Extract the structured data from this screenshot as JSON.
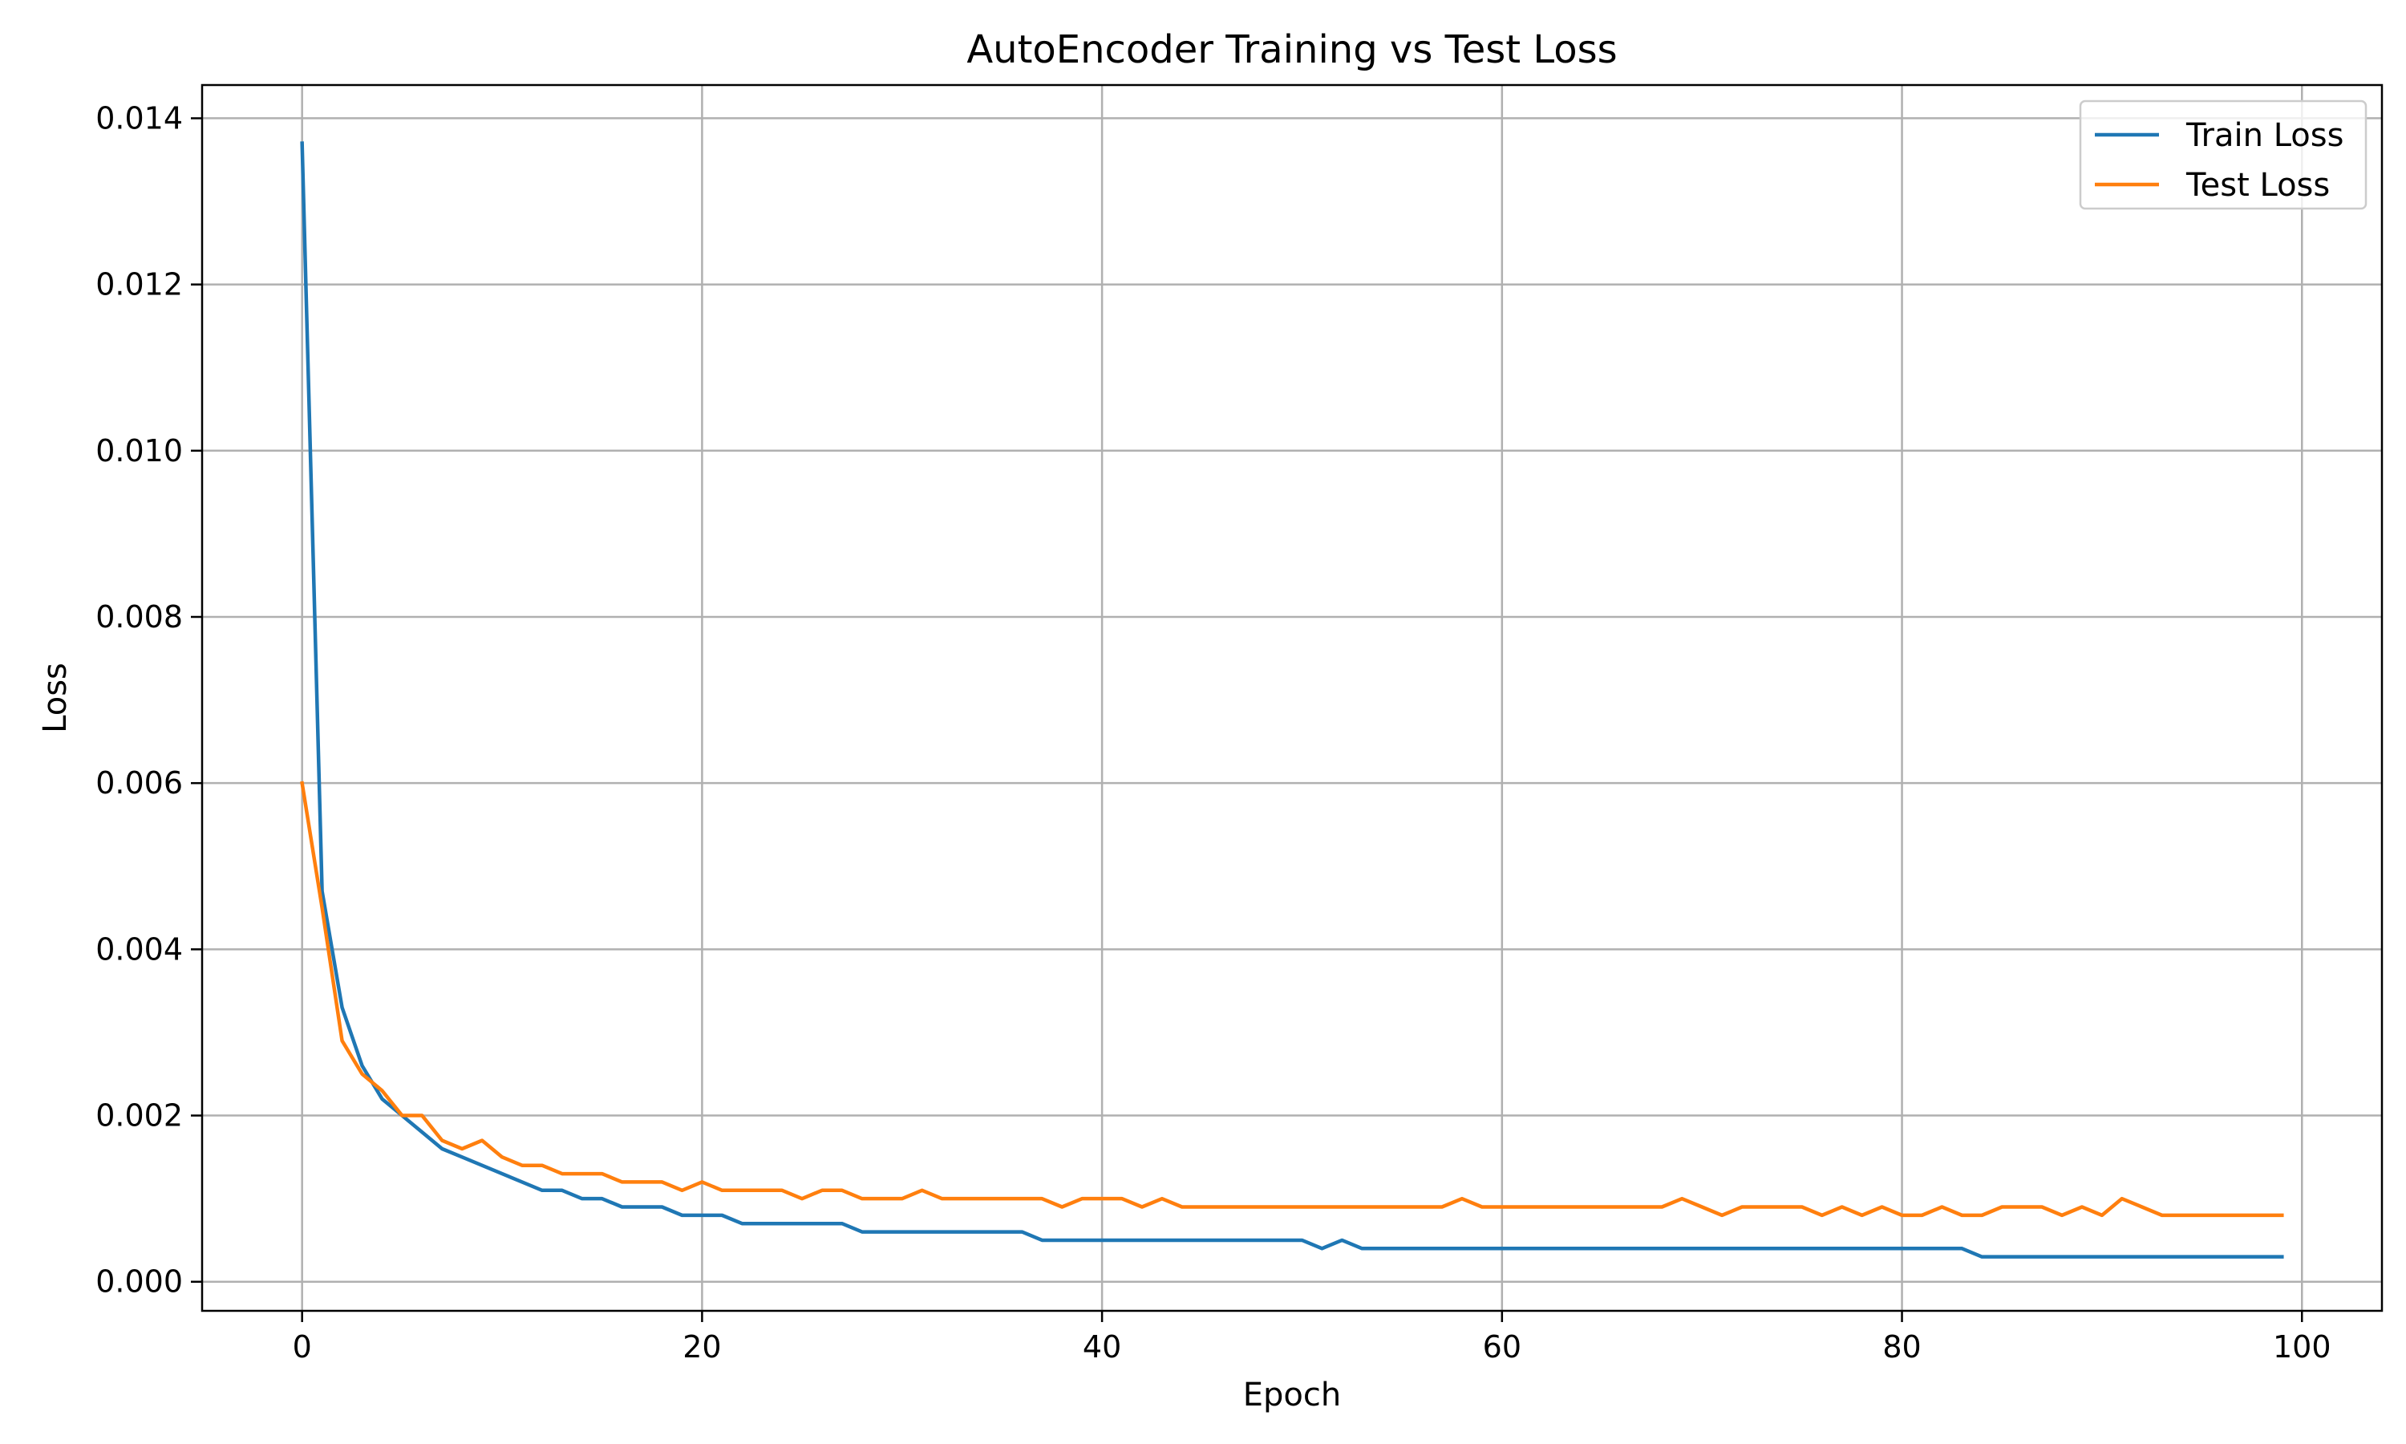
{
  "chart_data": {
    "type": "line",
    "title": "AutoEncoder Training vs Test Loss",
    "xlabel": "Epoch",
    "ylabel": "Loss",
    "xlim": [
      -5,
      104
    ],
    "ylim": [
      -0.00035,
      0.0144
    ],
    "xticks": [
      0,
      20,
      40,
      60,
      80,
      100
    ],
    "xtick_labels": [
      "0",
      "20",
      "40",
      "60",
      "80",
      "100"
    ],
    "yticks": [
      0.0,
      0.002,
      0.004,
      0.006,
      0.008,
      0.01,
      0.012,
      0.014
    ],
    "ytick_labels": [
      "0.000",
      "0.002",
      "0.004",
      "0.006",
      "0.008",
      "0.010",
      "0.012",
      "0.014"
    ],
    "grid": true,
    "legend_position": "top-right",
    "series": [
      {
        "name": "Train Loss",
        "color": "#1f77b4",
        "values": [
          0.0137,
          0.0047,
          0.0033,
          0.0026,
          0.0022,
          0.002,
          0.0018,
          0.0016,
          0.0015,
          0.0014,
          0.0013,
          0.0012,
          0.0011,
          0.0011,
          0.001,
          0.001,
          0.0009,
          0.0009,
          0.0009,
          0.0008,
          0.0008,
          0.0008,
          0.0007,
          0.0007,
          0.0007,
          0.0007,
          0.0007,
          0.0007,
          0.0006,
          0.0006,
          0.0006,
          0.0006,
          0.0006,
          0.0006,
          0.0006,
          0.0006,
          0.0006,
          0.0005,
          0.0005,
          0.0005,
          0.0005,
          0.0005,
          0.0005,
          0.0005,
          0.0005,
          0.0005,
          0.0005,
          0.0005,
          0.0005,
          0.0005,
          0.0005,
          0.0004,
          0.0005,
          0.0004,
          0.0004,
          0.0004,
          0.0004,
          0.0004,
          0.0004,
          0.0004,
          0.0004,
          0.0004,
          0.0004,
          0.0004,
          0.0004,
          0.0004,
          0.0004,
          0.0004,
          0.0004,
          0.0004,
          0.0004,
          0.0004,
          0.0004,
          0.0004,
          0.0004,
          0.0004,
          0.0004,
          0.0004,
          0.0004,
          0.0004,
          0.0004,
          0.0004,
          0.0004,
          0.0004,
          0.0003,
          0.0003,
          0.0003,
          0.0003,
          0.0003,
          0.0003,
          0.0003,
          0.0003,
          0.0003,
          0.0003,
          0.0003,
          0.0003,
          0.0003,
          0.0003,
          0.0003,
          0.0003
        ]
      },
      {
        "name": "Test Loss",
        "color": "#ff7f0e",
        "values": [
          0.006,
          0.0045,
          0.0029,
          0.0025,
          0.0023,
          0.002,
          0.002,
          0.0017,
          0.0016,
          0.0017,
          0.0015,
          0.0014,
          0.0014,
          0.0013,
          0.0013,
          0.0013,
          0.0012,
          0.0012,
          0.0012,
          0.0011,
          0.0012,
          0.0011,
          0.0011,
          0.0011,
          0.0011,
          0.001,
          0.0011,
          0.0011,
          0.001,
          0.001,
          0.001,
          0.0011,
          0.001,
          0.001,
          0.001,
          0.001,
          0.001,
          0.001,
          0.0009,
          0.001,
          0.001,
          0.001,
          0.0009,
          0.001,
          0.0009,
          0.0009,
          0.0009,
          0.0009,
          0.0009,
          0.0009,
          0.0009,
          0.0009,
          0.0009,
          0.0009,
          0.0009,
          0.0009,
          0.0009,
          0.0009,
          0.001,
          0.0009,
          0.0009,
          0.0009,
          0.0009,
          0.0009,
          0.0009,
          0.0009,
          0.0009,
          0.0009,
          0.0009,
          0.001,
          0.0009,
          0.0008,
          0.0009,
          0.0009,
          0.0009,
          0.0009,
          0.0008,
          0.0009,
          0.0008,
          0.0009,
          0.0008,
          0.0008,
          0.0009,
          0.0008,
          0.0008,
          0.0009,
          0.0009,
          0.0009,
          0.0008,
          0.0009,
          0.0008,
          0.001,
          0.0009,
          0.0008,
          0.0008,
          0.0008,
          0.0008,
          0.0008,
          0.0008,
          0.0008
        ]
      }
    ]
  }
}
